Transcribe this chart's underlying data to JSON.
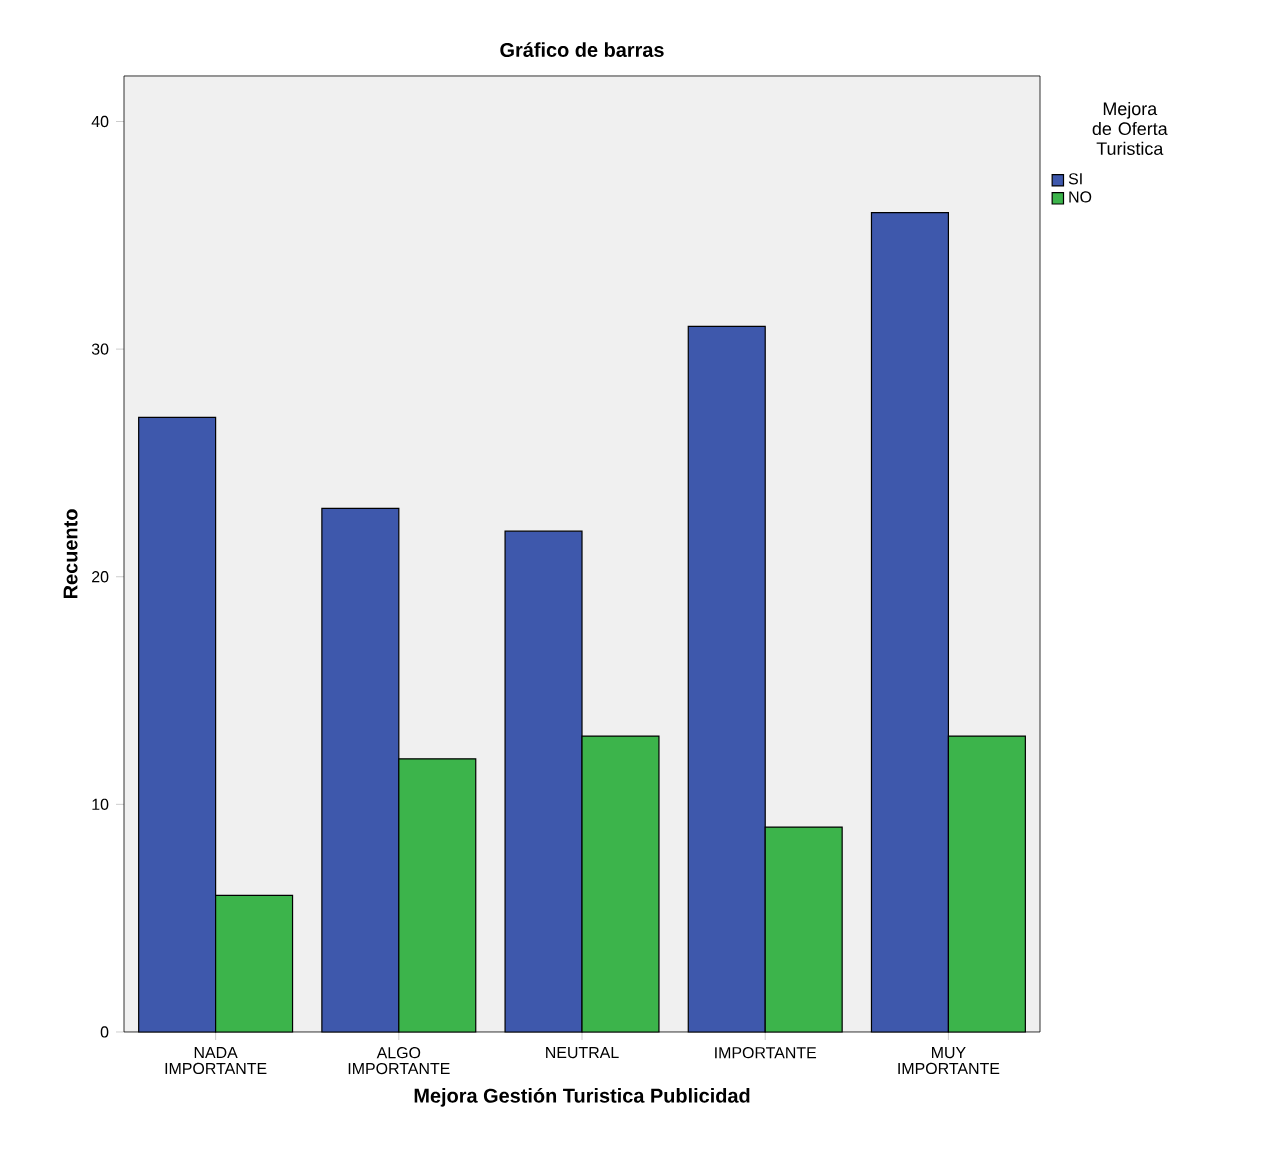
{
  "chart_data": {
    "type": "bar",
    "title": "Gráfico de barras",
    "xlabel": "Mejora Gestión Turistica Publicidad",
    "ylabel": "Recuento",
    "legend_title": "Mejora de Oferta Turistica",
    "legend": "top right",
    "categories": [
      "NADA IMPORTANTE",
      "ALGO IMPORTANTE",
      "NEUTRAL",
      "IMPORTANTE",
      "MUY IMPORTANTE"
    ],
    "series": [
      {
        "name": "SI",
        "color": "#3e58ac",
        "values": [
          27,
          23,
          22,
          31,
          36
        ]
      },
      {
        "name": "NO",
        "color": "#3cb44b",
        "values": [
          6,
          12,
          13,
          9,
          13
        ]
      }
    ],
    "ylim": [
      0,
      42
    ],
    "yticks": [
      0,
      10,
      20,
      30,
      40
    ],
    "grid": false
  }
}
